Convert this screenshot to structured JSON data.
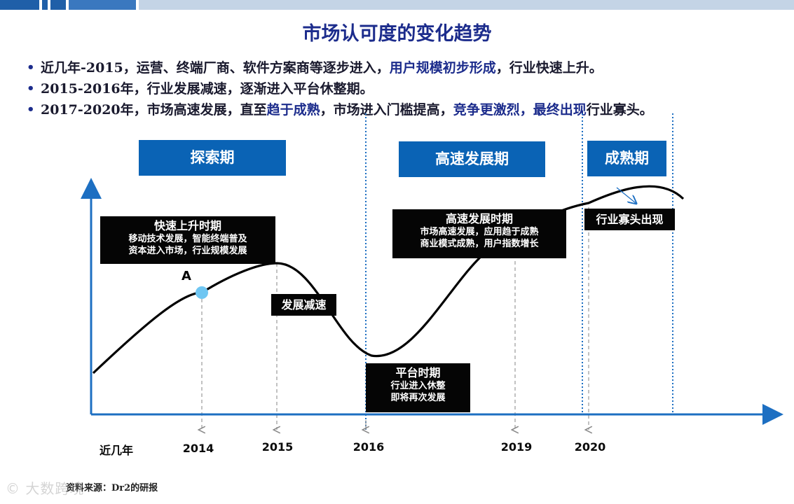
{
  "colors": {
    "title": "#1c2c8c",
    "phase_box": "#0a63b5",
    "axis": "#1d6fc2",
    "curve": "#000000",
    "point": "#6fc6f2",
    "guide_gray": "#9a9a9a",
    "guide_blue": "#1d6fc2",
    "note_box": "#050505"
  },
  "title": "市场认可度的变化趋势",
  "bullets": [
    {
      "prefix": "近几年-2015，运营、终端厂商、软件方案商等逐步进入，",
      "highlight": "用户规模初步形成",
      "suffix": "，行业快速上升。"
    },
    {
      "prefix": "2015-2016年，行业发展减速，逐渐进入平台休整期。",
      "highlight": "",
      "suffix": ""
    },
    {
      "prefix": "2017-2020年，市场高速发展，直至",
      "highlight": "趋于成熟",
      "middle": "，市场进入门槛提高，",
      "highlight2": "竞争更激烈，最终出现",
      "suffix": "行业寡头。"
    }
  ],
  "phases": {
    "explore": "探索期",
    "growth": "高速发展期",
    "mature": "成熟期"
  },
  "notes": {
    "rise": {
      "title": "快速上升时期",
      "lines": [
        "移动技术发展，智能终端普及",
        "资本进入市场，行业规模发展"
      ]
    },
    "slowdown": {
      "title": "发展减速"
    },
    "platform": {
      "title": "平台时期",
      "lines": [
        "行业进入休整",
        "即将再次发展"
      ]
    },
    "highspeed": {
      "title": "高速发展时期",
      "lines": [
        "市场高速发展，应用趋于成熟",
        "商业模式成熟，用户指数增长"
      ]
    },
    "oligopoly": {
      "title": "行业寡头出现"
    }
  },
  "point_label": "A",
  "x_ticks": [
    "近几年",
    "2014",
    "2015",
    "2016",
    "2019",
    "2020"
  ],
  "source": "资料来源：Dr2的研报",
  "watermark": "© 大数跨境"
}
